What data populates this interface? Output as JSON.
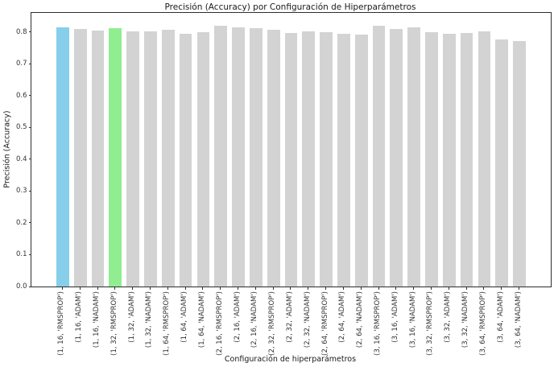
{
  "chart_data": {
    "type": "bar",
    "title": "Precisión (Accuracy) por Configuración de Hiperparámetros",
    "xlabel": "Configuración de hiperparámetros",
    "ylabel": "Precisión (Accuracy)",
    "ylim": [
      0,
      0.86
    ],
    "yticks": [
      "0.0",
      "0.1",
      "0.2",
      "0.3",
      "0.4",
      "0.5",
      "0.6",
      "0.7",
      "0.8"
    ],
    "grid": false,
    "legend": null,
    "categories": [
      "(1, 16, 'RMSPROP')",
      "(1, 16, 'ADAM')",
      "(1, 16, 'NADAM')",
      "(1, 32, 'RMSPROP')",
      "(1, 32, 'ADAM')",
      "(1, 32, 'NADAM')",
      "(1, 64, 'RMSPROP')",
      "(1, 64, 'ADAM')",
      "(1, 64, 'NADAM')",
      "(2, 16, 'RMSPROP')",
      "(2, 16, 'ADAM')",
      "(2, 16, 'NADAM')",
      "(2, 32, 'RMSPROP')",
      "(2, 32, 'ADAM')",
      "(2, 32, 'NADAM')",
      "(2, 64, 'RMSPROP')",
      "(2, 64, 'ADAM')",
      "(2, 64, 'NADAM')",
      "(3, 16, 'RMSPROP')",
      "(3, 16, 'ADAM')",
      "(3, 16, 'NADAM')",
      "(3, 32, 'RMSPROP')",
      "(3, 32, 'ADAM')",
      "(3, 32, 'NADAM')",
      "(3, 64, 'RMSPROP')",
      "(3, 64, 'ADAM')",
      "(3, 64, 'NADAM')"
    ],
    "values": [
      0.8147,
      0.809,
      0.804,
      0.8132,
      0.803,
      0.801,
      0.8061,
      0.795,
      0.799,
      0.8196,
      0.8147,
      0.811,
      0.807,
      0.797,
      0.801,
      0.799,
      0.794,
      0.792,
      0.8184,
      0.81,
      0.8135,
      0.799,
      0.794,
      0.796,
      0.801,
      0.776,
      0.771
    ],
    "bar_default_color": "#d3d3d3",
    "highlighted_bars": [
      {
        "index": 0,
        "color": "#87ceeb"
      },
      {
        "index": 3,
        "color": "#90ee90"
      }
    ]
  }
}
